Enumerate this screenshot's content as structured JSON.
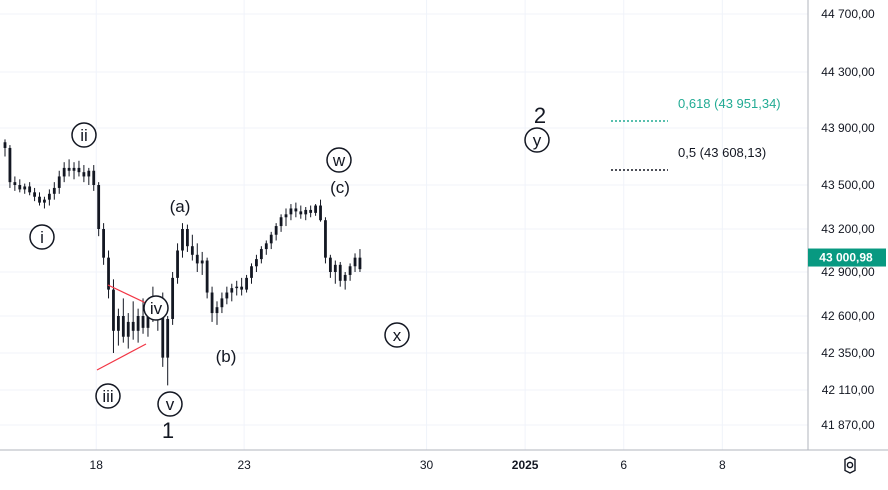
{
  "chart_data": {
    "type": "candlestick",
    "y_axis": {
      "position": "right",
      "range": [
        41700,
        44850
      ],
      "ticks": [
        "44 700,00",
        "44 300,00",
        "43 900,00",
        "43 500,00",
        "43 200,00",
        "42 900,00",
        "42 600,00",
        "42 350,00",
        "42 110,00",
        "41 870,00"
      ],
      "tick_values": [
        44700,
        44300,
        43900,
        43500,
        43200,
        42900,
        42600,
        42350,
        42110,
        41870
      ],
      "current_price": 43000.98,
      "current_price_label": "43 000,98",
      "current_price_color": "#089981"
    },
    "x_axis": {
      "ticks": [
        {
          "label": "18",
          "slot": 11,
          "bold": false
        },
        {
          "label": "23",
          "slot": 41,
          "bold": false
        },
        {
          "label": "30",
          "slot": 78,
          "bold": false
        },
        {
          "label": "2025",
          "slot": 98,
          "bold": true
        },
        {
          "label": "6",
          "slot": 118,
          "bold": false
        },
        {
          "label": "8",
          "slot": 138,
          "bold": false
        }
      ]
    },
    "ohlc_approx": [
      [
        43800,
        43820,
        43700,
        43760
      ],
      [
        43760,
        43780,
        43480,
        43520
      ],
      [
        43520,
        43560,
        43460,
        43500
      ],
      [
        43500,
        43540,
        43450,
        43470
      ],
      [
        43470,
        43510,
        43440,
        43490
      ],
      [
        43490,
        43520,
        43430,
        43450
      ],
      [
        43450,
        43480,
        43390,
        43420
      ],
      [
        43420,
        43450,
        43360,
        43380
      ],
      [
        43380,
        43420,
        43340,
        43400
      ],
      [
        43400,
        43470,
        43360,
        43440
      ],
      [
        43440,
        43520,
        43400,
        43480
      ],
      [
        43480,
        43600,
        43440,
        43560
      ],
      [
        43560,
        43660,
        43520,
        43620
      ],
      [
        43620,
        43680,
        43560,
        43600
      ],
      [
        43600,
        43660,
        43540,
        43620
      ],
      [
        43620,
        43670,
        43560,
        43590
      ],
      [
        43590,
        43640,
        43520,
        43560
      ],
      [
        43560,
        43620,
        43500,
        43600
      ],
      [
        43600,
        43640,
        43460,
        43500
      ],
      [
        43500,
        43520,
        43150,
        43200
      ],
      [
        43200,
        43240,
        42950,
        43000
      ],
      [
        43000,
        43050,
        42720,
        42780
      ],
      [
        42780,
        42850,
        42350,
        42500
      ],
      [
        42500,
        42650,
        42400,
        42600
      ],
      [
        42600,
        42720,
        42420,
        42460
      ],
      [
        42460,
        42620,
        42380,
        42560
      ],
      [
        42560,
        42700,
        42440,
        42500
      ],
      [
        42500,
        42650,
        42420,
        42600
      ],
      [
        42600,
        42720,
        42480,
        42520
      ],
      [
        42520,
        42700,
        42460,
        42680
      ],
      [
        42680,
        42800,
        42560,
        42600
      ],
      [
        42600,
        42740,
        42500,
        42700
      ],
      [
        42700,
        42760,
        42260,
        42320
      ],
      [
        42320,
        42600,
        42140,
        42580
      ],
      [
        42580,
        42900,
        42540,
        42860
      ],
      [
        42860,
        43100,
        42820,
        43050
      ],
      [
        43050,
        43240,
        43000,
        43200
      ],
      [
        43200,
        43230,
        43040,
        43080
      ],
      [
        43080,
        43160,
        42980,
        43020
      ],
      [
        43020,
        43100,
        42900,
        42960
      ],
      [
        42960,
        43040,
        42880,
        42980
      ],
      [
        42980,
        43000,
        42720,
        42760
      ],
      [
        42760,
        42800,
        42560,
        42620
      ],
      [
        42620,
        42700,
        42540,
        42660
      ],
      [
        42660,
        42760,
        42620,
        42720
      ],
      [
        42720,
        42800,
        42680,
        42760
      ],
      [
        42760,
        42820,
        42700,
        42790
      ],
      [
        42790,
        42840,
        42740,
        42800
      ],
      [
        42800,
        42860,
        42740,
        42780
      ],
      [
        42780,
        42880,
        42760,
        42860
      ],
      [
        42860,
        42960,
        42820,
        42940
      ],
      [
        42940,
        43020,
        42900,
        42990
      ],
      [
        42990,
        43080,
        42960,
        43060
      ],
      [
        43060,
        43120,
        43020,
        43100
      ],
      [
        43100,
        43180,
        43060,
        43160
      ],
      [
        43160,
        43240,
        43120,
        43220
      ],
      [
        43220,
        43300,
        43180,
        43280
      ],
      [
        43280,
        43340,
        43220,
        43300
      ],
      [
        43300,
        43370,
        43260,
        43340
      ],
      [
        43340,
        43380,
        43280,
        43320
      ],
      [
        43320,
        43360,
        43270,
        43300
      ],
      [
        43300,
        43350,
        43260,
        43330
      ],
      [
        43330,
        43360,
        43280,
        43310
      ],
      [
        43310,
        43370,
        43290,
        43360
      ],
      [
        43360,
        43400,
        43250,
        43260
      ],
      [
        43260,
        43280,
        42960,
        43000
      ],
      [
        43000,
        43020,
        42860,
        42900
      ],
      [
        42900,
        42980,
        42820,
        42950
      ],
      [
        42950,
        42970,
        42800,
        42840
      ],
      [
        42840,
        42900,
        42780,
        42880
      ],
      [
        42880,
        42960,
        42840,
        42940
      ],
      [
        42940,
        43030,
        42900,
        43000
      ],
      [
        43000,
        43060,
        42900,
        42920
      ]
    ],
    "wave_labels": [
      {
        "text": "i",
        "circled": true
      },
      {
        "text": "ii",
        "circled": true
      },
      {
        "text": "iii",
        "circled": true
      },
      {
        "text": "iv",
        "circled": true
      },
      {
        "text": "v",
        "circled": true
      },
      {
        "text": "1",
        "circled": false
      },
      {
        "text": "(a)",
        "circled": false
      },
      {
        "text": "(b)",
        "circled": false
      },
      {
        "text": "(c)",
        "circled": false
      },
      {
        "text": "w",
        "circled": true
      },
      {
        "text": "x",
        "circled": true
      },
      {
        "text": "y",
        "circled": true
      },
      {
        "text": "2",
        "circled": false
      }
    ],
    "fib_levels": [
      {
        "ratio": "0,618",
        "price": "43 951,34",
        "label": "0,618 (43 951,34)",
        "color": "#22ab94"
      },
      {
        "ratio": "0,5",
        "price": "43 608,13",
        "label": "0,5 (43 608,13)",
        "color": "#131722"
      }
    ],
    "triangle_color": "#f23645"
  },
  "ui": {
    "settings_icon": "gear-icon"
  }
}
